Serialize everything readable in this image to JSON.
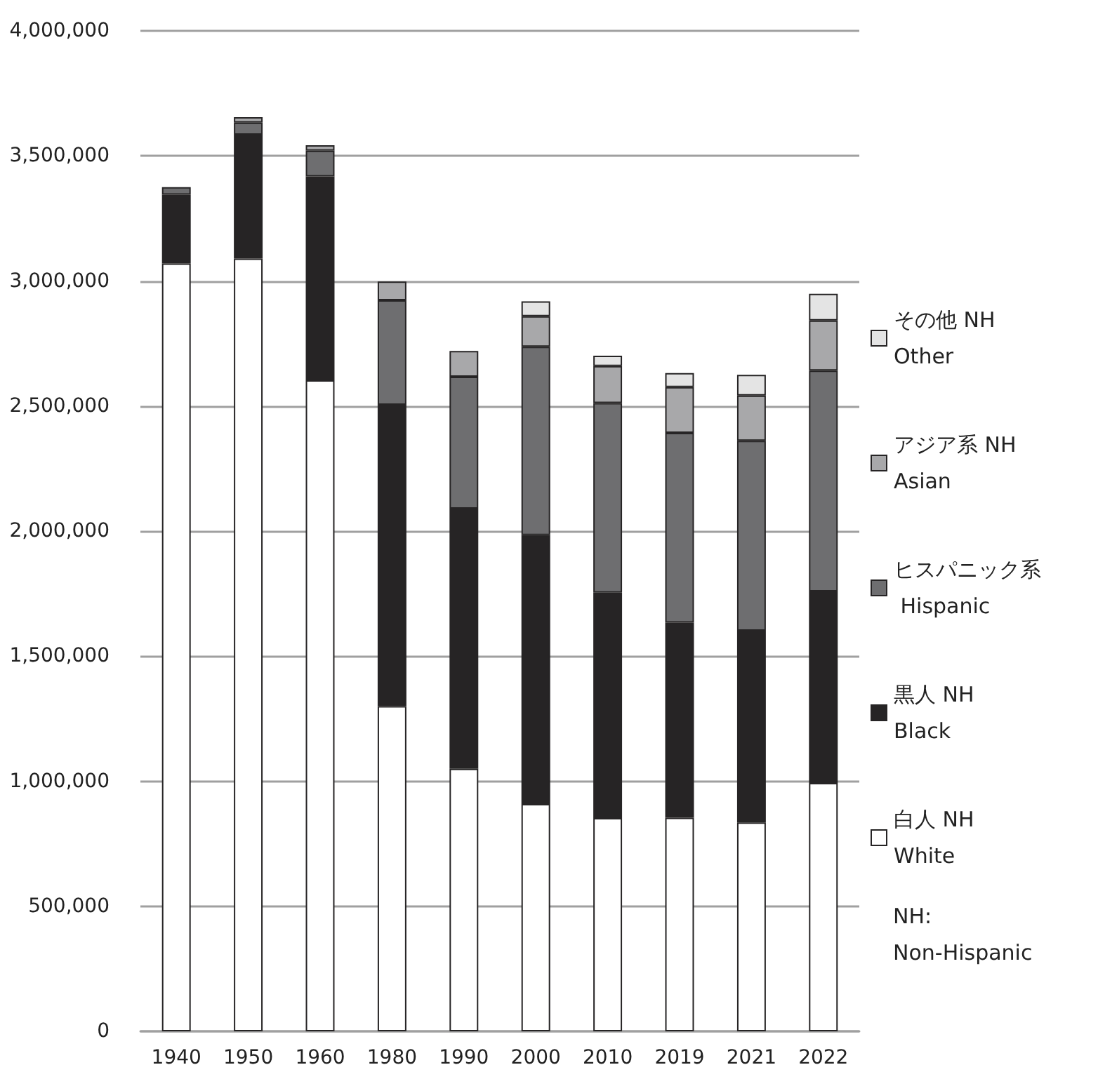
{
  "chart_data": {
    "type": "bar",
    "stacked": true,
    "categories": [
      "1940",
      "1950",
      "1960",
      "1980",
      "1990",
      "2000",
      "2010",
      "2019",
      "2021",
      "2022"
    ],
    "series": [
      {
        "name": "白人 NH White",
        "color": "#ffffff",
        "values": [
          3070000,
          3090000,
          2603000,
          1300000,
          1050000,
          909000,
          853000,
          854000,
          835000,
          993000
        ]
      },
      {
        "name": "黒人 NH Black",
        "color": "#262425",
        "values": [
          275000,
          495000,
          815000,
          1205000,
          1040000,
          1075000,
          901000,
          780000,
          767000,
          766000
        ]
      },
      {
        "name": "ヒスパニック系 Hispanic",
        "color": "#6e6e70",
        "values": [
          30000,
          48000,
          103000,
          418000,
          527000,
          753000,
          758000,
          759000,
          759000,
          883000
        ]
      },
      {
        "name": "アジア系 NH Asian",
        "color": "#a8a8aa",
        "values": [
          null,
          22000,
          22000,
          75000,
          103000,
          122000,
          148000,
          183000,
          181000,
          200000
        ]
      },
      {
        "name": "その他 NH Other",
        "color": "#e4e4e4",
        "values": [
          null,
          null,
          null,
          null,
          null,
          60000,
          41000,
          56000,
          83000,
          107000
        ]
      }
    ],
    "ylim": [
      0,
      4000000
    ],
    "yticks": [
      0,
      {
        "value": 500000,
        "label": "500,000"
      },
      {
        "value": 1000000,
        "label": "1,000,000"
      },
      {
        "value": 1500000,
        "label": "1,500,000"
      },
      {
        "value": 2000000,
        "label": "2,000,000"
      },
      {
        "value": 2500000,
        "label": "2,500,000"
      },
      {
        "value": 3000000,
        "label": "3,000,000"
      },
      {
        "value": 3500000,
        "label": "3,500,000"
      },
      {
        "value": 4000000,
        "label": "4,000,000"
      }
    ],
    "grid": "y",
    "legend": "right",
    "annotations": [
      "NH: Non-Hispanic"
    ]
  }
}
